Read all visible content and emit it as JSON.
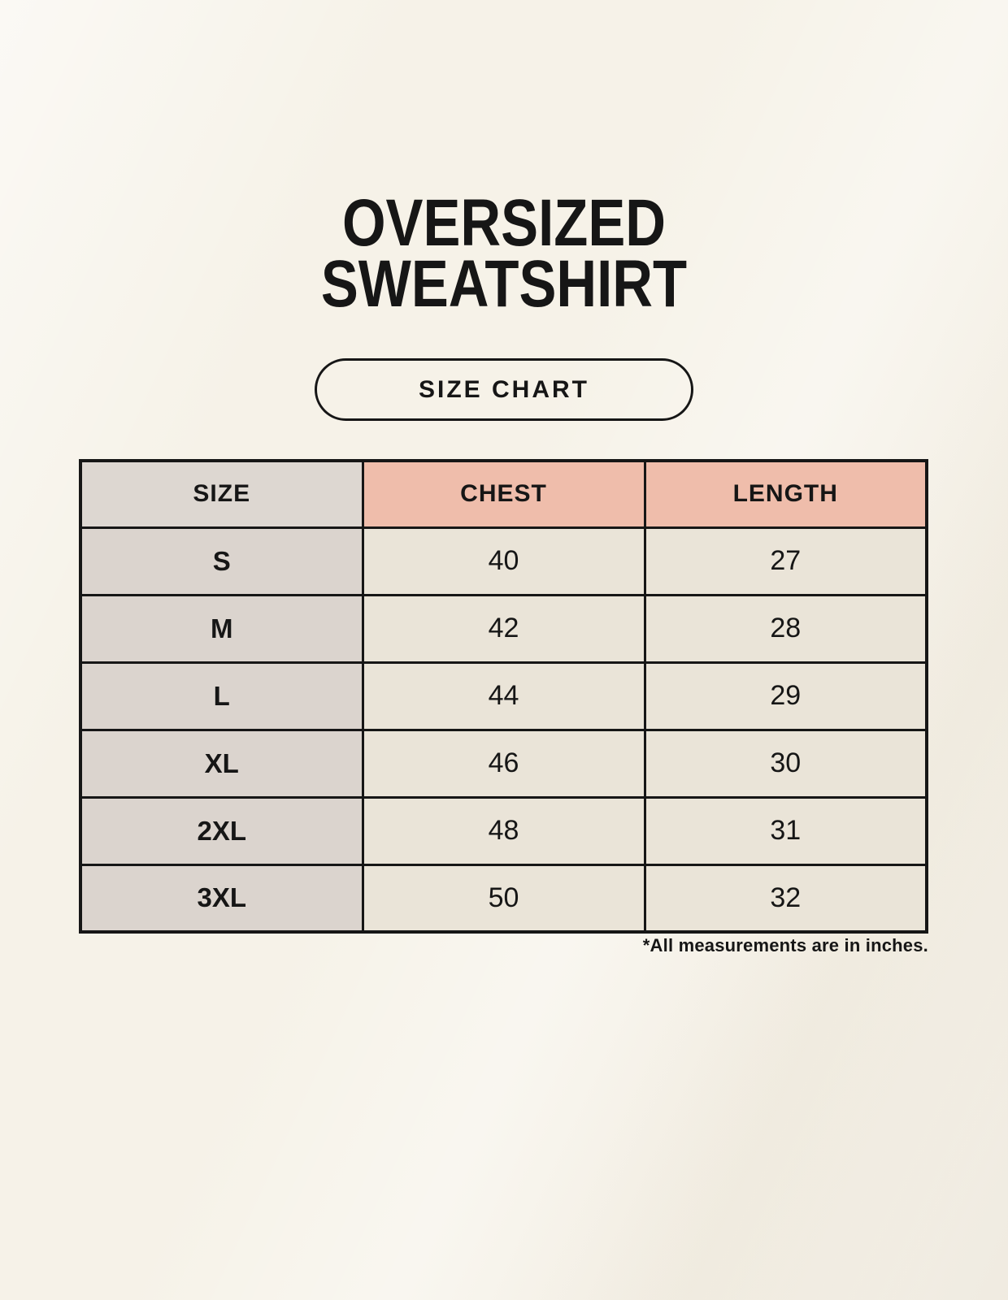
{
  "header": {
    "title_line1": "OVERSIZED",
    "title_line2": "SWEATSHIRT",
    "badge_label": "SIZE CHART"
  },
  "colors": {
    "background": "#f6f2e8",
    "table_border": "#161616",
    "header_size_bg": "#ddd7d1",
    "header_accent_bg": "#efbdab",
    "size_column_bg": "#dbd4ce",
    "value_cell_bg": "#eae4d8",
    "text": "#161616"
  },
  "chart_data": {
    "type": "table",
    "title": "OVERSIZED SWEATSHIRT",
    "subtitle": "SIZE CHART",
    "columns": [
      "SIZE",
      "CHEST",
      "LENGTH"
    ],
    "rows": [
      [
        "S",
        "40",
        "27"
      ],
      [
        "M",
        "42",
        "28"
      ],
      [
        "L",
        "44",
        "29"
      ],
      [
        "XL",
        "46",
        "30"
      ],
      [
        "2XL",
        "48",
        "31"
      ],
      [
        "3XL",
        "50",
        "32"
      ]
    ],
    "units_note": "*All measurements are in inches."
  }
}
